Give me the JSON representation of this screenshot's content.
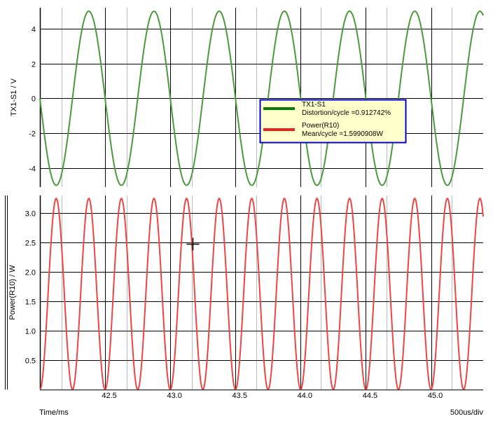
{
  "colors": {
    "voltage_trace": "#4a9a3c",
    "power_trace": "#ee4444",
    "legend_voltage": "#0a7a0a",
    "legend_power": "#ee2222",
    "legend_border": "#0000cc",
    "legend_bg": "#ffffcc",
    "major_grid": "#000000",
    "minor_grid": "#bbbbbb"
  },
  "footer": {
    "x_label": "Time/ms",
    "scale": "500us/div"
  },
  "cursor": {
    "x": 43.17,
    "y": 2.48
  },
  "chart_data": [
    {
      "type": "line",
      "ylabel": "TX1-S1 / V",
      "xlim": [
        42.0,
        45.4
      ],
      "ylim": [
        -5.1,
        5.2
      ],
      "y_ticks": [
        -4,
        -2,
        0,
        2,
        4
      ],
      "y_tick_labels": [
        "-4",
        "-2",
        "0",
        "2",
        "4"
      ],
      "grid": true,
      "series": [
        {
          "name": "TX1-S1",
          "waveform": "sine",
          "amplitude": 5.0,
          "period_ms": 0.5,
          "zero_crossing_ms": 42.5
        }
      ]
    },
    {
      "type": "line",
      "ylabel": "Power(R10) / W",
      "xlim": [
        42.0,
        45.4
      ],
      "ylim": [
        0,
        3.3
      ],
      "y_ticks": [
        0.5,
        1.0,
        1.5,
        2.0,
        2.5,
        3.0
      ],
      "y_tick_labels": [
        "0.5",
        "1.0",
        "1.5",
        "2.0",
        "2.5",
        "3.0"
      ],
      "x_ticks": [
        42.5,
        43.0,
        43.5,
        44.0,
        44.5,
        45.0
      ],
      "x_tick_labels": [
        "42.5",
        "43.0",
        "43.5",
        "44.0",
        "44.5",
        "45.0"
      ],
      "grid": true,
      "series": [
        {
          "name": "Power(R10)",
          "waveform": "sine-squared",
          "peak_w": 3.25,
          "period_ms": 0.5,
          "zero_ms": 42.5
        }
      ]
    }
  ],
  "legend": {
    "placement": "right",
    "entries": [
      {
        "line1": "TX1-S1",
        "line2": "Distortion/cycle =0.912742%"
      },
      {
        "line1": "Power(R10)",
        "line2": "Mean/cycle =1.5990908W"
      }
    ]
  }
}
